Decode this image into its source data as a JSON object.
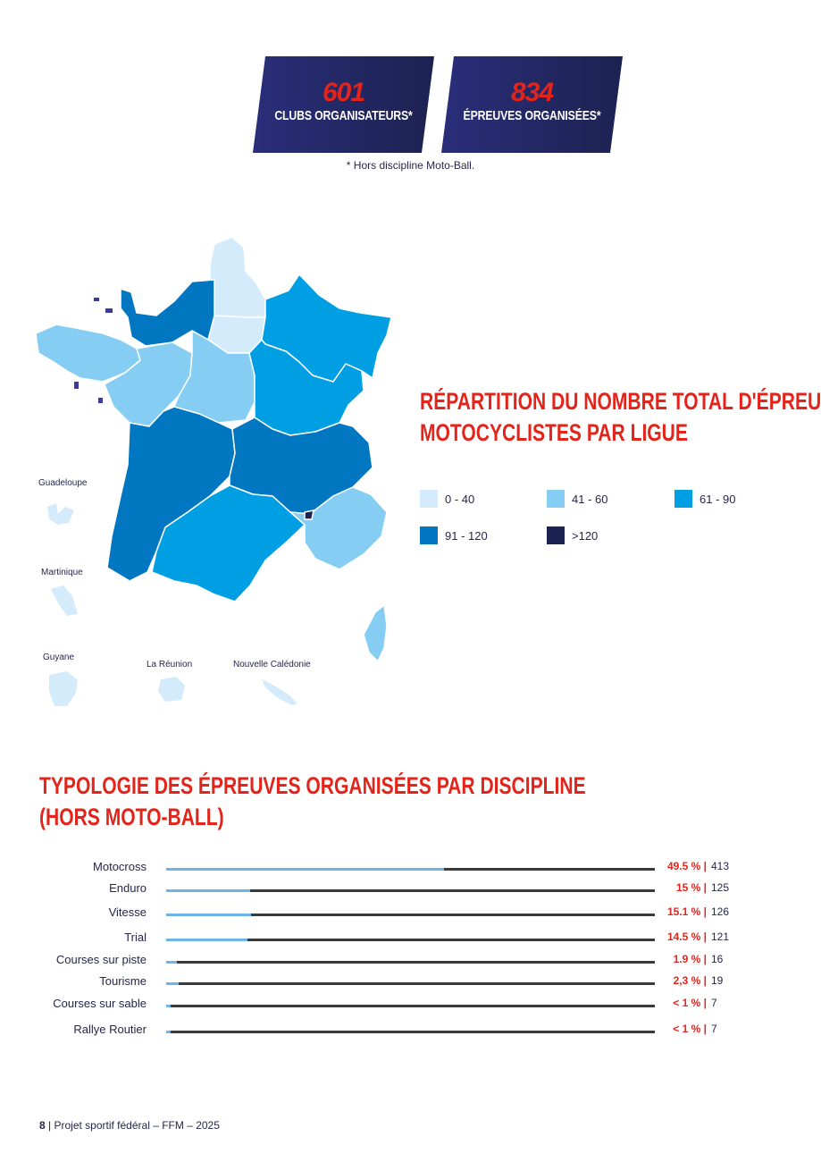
{
  "kpis": [
    {
      "value": "601",
      "label": "CLUBS ORGANISATEURS*"
    },
    {
      "value": "834",
      "label": "ÉPREUVES ORGANISÉES*"
    }
  ],
  "kpi_note": "* Hors discipline Moto-Ball.",
  "map": {
    "overseas_labels": [
      "Guadeloupe",
      "Martinique",
      "Guyane",
      "La Réunion",
      "Nouvelle Calédonie"
    ]
  },
  "map_section": {
    "title_lines": [
      "RÉPARTITION DU NOMBRE TOTAL D'ÉPREUVES",
      "MOTOCYCLISTES PAR LIGUE"
    ],
    "legend": [
      {
        "label": "0 - 40",
        "color": "#d4ebfb"
      },
      {
        "label": "41 - 60",
        "color": "#86cdf4"
      },
      {
        "label": "61 - 90",
        "color": "#009fe3"
      },
      {
        "label": "91 - 120",
        "color": "#0077c0"
      },
      {
        "label": ">120",
        "color": "#1c2251"
      }
    ]
  },
  "discipline_section": {
    "title_lines": [
      "TYPOLOGIE DES ÉPREUVES ORGANISÉES PAR DISCIPLINE",
      "(HORS MOTO-BALL)"
    ]
  },
  "chart_data": {
    "type": "bar",
    "orientation": "horizontal",
    "title": "TYPOLOGIE DES ÉPREUVES ORGANISÉES PAR DISCIPLINE (HORS MOTO-BALL)",
    "categories": [
      "Motocross",
      "Enduro",
      "Vitesse",
      "Trial",
      "Courses sur piste",
      "Tourisme",
      "Courses sur sable",
      "Rallye Routier"
    ],
    "percent_labels": [
      "49.5 % |",
      "15 % |",
      "15.1 % |",
      "14.5 % |",
      "1.9 % |",
      "2,3 % |",
      "< 1 % |",
      "< 1 % |"
    ],
    "counts": [
      413,
      125,
      126,
      121,
      16,
      19,
      7,
      7
    ],
    "share": [
      0.495,
      0.15,
      0.151,
      0.145,
      0.019,
      0.023,
      0.008,
      0.008
    ],
    "fill_color": "#6fb4e6",
    "track_color": "#3a3a3a"
  },
  "footer": {
    "page": "8",
    "text": " | Projet sportif fédéral – FFM – 2025"
  }
}
